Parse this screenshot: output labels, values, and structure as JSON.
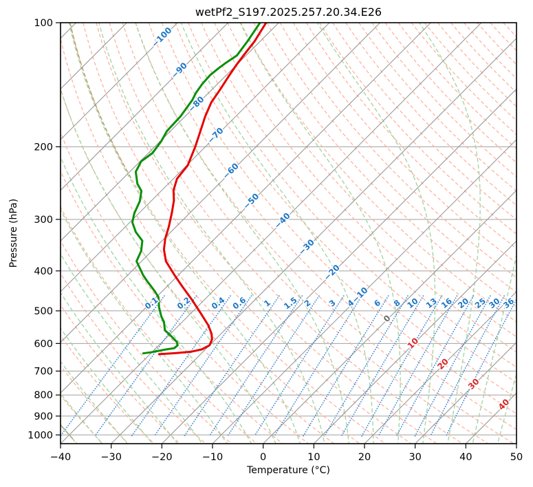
{
  "title": "wetPf2_S197.2025.257.20.34.E26",
  "axes": {
    "x_label": "Temperature (°C)",
    "y_label": "Pressure (hPa)",
    "x_ticks": [
      -40,
      -30,
      -20,
      -10,
      0,
      10,
      20,
      30,
      40,
      50
    ],
    "y_ticks": [
      100,
      200,
      300,
      400,
      500,
      600,
      700,
      800,
      900,
      1000
    ],
    "x_range_c": [
      -40,
      50
    ],
    "p_range_hpa": [
      100,
      1050
    ],
    "skew_deg": 45
  },
  "chart_data": {
    "type": "skewt_log_p",
    "title": "wetPf2_S197.2025.257.20.34.E26",
    "temperature_profile": {
      "name": "temperature",
      "color_key": "temperature",
      "points_p_t": [
        [
          100,
          -82.5
        ],
        [
          111,
          -81.1
        ],
        [
          120,
          -80.5
        ],
        [
          127,
          -80.0
        ],
        [
          135,
          -79.3
        ],
        [
          145,
          -78.4
        ],
        [
          156,
          -77.6
        ],
        [
          169,
          -76.0
        ],
        [
          183,
          -74.1
        ],
        [
          200,
          -72.0
        ],
        [
          222,
          -69.8
        ],
        [
          239,
          -69.3
        ],
        [
          255,
          -67.7
        ],
        [
          270,
          -65.6
        ],
        [
          290,
          -63.5
        ],
        [
          313,
          -61.4
        ],
        [
          334,
          -59.8
        ],
        [
          355,
          -57.9
        ],
        [
          379,
          -55.2
        ],
        [
          410,
          -50.7
        ],
        [
          437,
          -46.9
        ],
        [
          472,
          -42.2
        ],
        [
          510,
          -37.7
        ],
        [
          542,
          -34.2
        ],
        [
          568,
          -31.9
        ],
        [
          586,
          -30.7
        ],
        [
          606,
          -30.0
        ],
        [
          620,
          -30.7
        ],
        [
          628,
          -32.3
        ],
        [
          633,
          -35.0
        ],
        [
          637,
          -38.2
        ]
      ]
    },
    "dewpoint_profile": {
      "name": "dewpoint",
      "color_key": "dewpoint",
      "points_p_t": [
        [
          100,
          -83.7
        ],
        [
          111,
          -82.5
        ],
        [
          120,
          -81.8
        ],
        [
          125,
          -82.5
        ],
        [
          129,
          -82.9
        ],
        [
          134,
          -83.2
        ],
        [
          141,
          -83.0
        ],
        [
          148,
          -82.5
        ],
        [
          154,
          -81.8
        ],
        [
          169,
          -80.9
        ],
        [
          183,
          -80.7
        ],
        [
          194,
          -79.8
        ],
        [
          207,
          -79.2
        ],
        [
          217,
          -79.8
        ],
        [
          230,
          -78.8
        ],
        [
          246,
          -76.1
        ],
        [
          256,
          -73.9
        ],
        [
          271,
          -72.2
        ],
        [
          290,
          -70.9
        ],
        [
          305,
          -69.5
        ],
        [
          322,
          -66.9
        ],
        [
          338,
          -63.9
        ],
        [
          358,
          -62.1
        ],
        [
          379,
          -61.0
        ],
        [
          410,
          -56.9
        ],
        [
          422,
          -55.2
        ],
        [
          448,
          -51.5
        ],
        [
          463,
          -49.6
        ],
        [
          491,
          -47.4
        ],
        [
          516,
          -45.2
        ],
        [
          532,
          -43.6
        ],
        [
          557,
          -41.8
        ],
        [
          579,
          -39.0
        ],
        [
          595,
          -37.1
        ],
        [
          606,
          -36.3
        ],
        [
          616,
          -36.4
        ],
        [
          620,
          -37.7
        ],
        [
          630,
          -40.1
        ],
        [
          634,
          -41.5
        ]
      ]
    },
    "isotherms": {
      "min_c": -130,
      "max_c": 50,
      "step_c": 10,
      "labels": [
        {
          "t": -100,
          "p": 108
        },
        {
          "t": -90,
          "p": 130
        },
        {
          "t": -80,
          "p": 157
        },
        {
          "t": -70,
          "p": 187
        },
        {
          "t": -60,
          "p": 228
        },
        {
          "t": -50,
          "p": 270
        },
        {
          "t": -40,
          "p": 301
        },
        {
          "t": -30,
          "p": 349
        },
        {
          "t": -20,
          "p": 402
        },
        {
          "t": -10,
          "p": 456
        },
        {
          "t": 0,
          "p": 520
        },
        {
          "t": 10,
          "p": 597
        },
        {
          "t": 20,
          "p": 670
        },
        {
          "t": 30,
          "p": 749
        },
        {
          "t": 40,
          "p": 840
        }
      ]
    },
    "isobars": [
      100,
      200,
      300,
      400,
      500,
      600,
      700,
      800,
      900,
      1000
    ],
    "dry_adiabats": {
      "theta_min_c": -45,
      "theta_max_c": 190,
      "step_c": 5
    },
    "moist_adiabats": {
      "thetaw_min_c": -40,
      "thetaw_max_c": 45,
      "step_c": 5
    },
    "mixing_ratio_g_kg": [
      0.1,
      0.2,
      0.4,
      0.6,
      1,
      1.5,
      2,
      3,
      4,
      6,
      8,
      10,
      13,
      16,
      20,
      25,
      30,
      36
    ],
    "mixing_ratio_label_p": 500,
    "mixing_ratio_top_p": 460,
    "overlap_adiabats": [
      {
        "theta_c": 20,
        "p_from": 100,
        "p_to": 250
      },
      {
        "theta_c": -40,
        "p_from": 850,
        "p_to": 1050
      }
    ],
    "colors": {
      "temperature": "#e60000",
      "dewpoint": "#0a8f0a",
      "isotherm": "#999999",
      "isobar": "#a0a0a0",
      "dry_adiabat": "#ffac97",
      "moist_adiabat": "#a5d6a4",
      "mixing_ratio": "#4a8fd3",
      "overlap_adiabat": "#b9a273",
      "label_blue": "#2077c5",
      "label_red": "#d62728",
      "label_gray": "#6e6e6e",
      "frame": "#000000"
    }
  }
}
